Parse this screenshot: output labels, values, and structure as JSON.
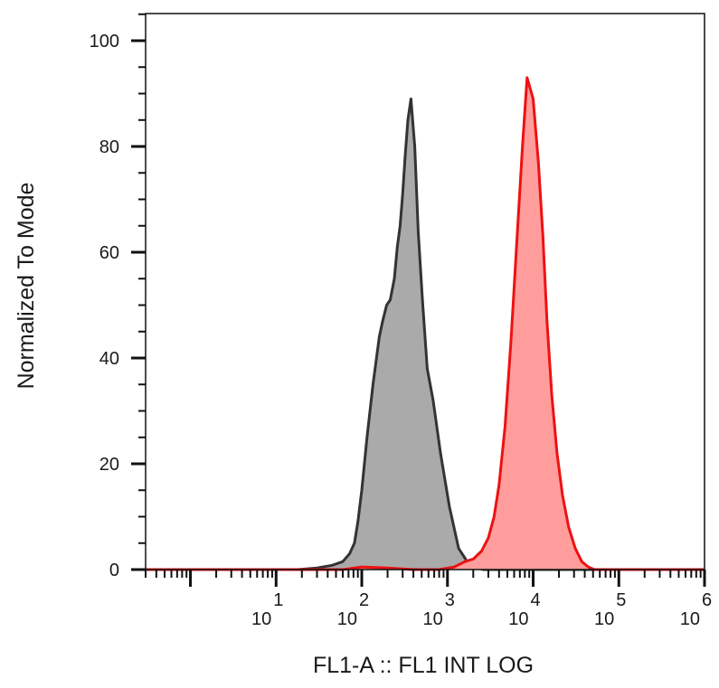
{
  "chart_data": {
    "type": "area",
    "xlabel": "FL1-A :: FL1 INT LOG",
    "ylabel": "Normalized To Mode",
    "x_scale": "log",
    "xlim": [
      0.3,
      1000000
    ],
    "ylim": [
      0,
      105
    ],
    "x_ticks": [
      {
        "base": "10",
        "exp": "1",
        "value": 10
      },
      {
        "base": "10",
        "exp": "2",
        "value": 100
      },
      {
        "base": "10",
        "exp": "3",
        "value": 1000
      },
      {
        "base": "10",
        "exp": "4",
        "value": 10000
      },
      {
        "base": "10",
        "exp": "5",
        "value": 100000
      },
      {
        "base": "10",
        "exp": "6",
        "value": 1000000
      }
    ],
    "y_ticks": [
      "0",
      "20",
      "40",
      "60",
      "80",
      "100"
    ],
    "series": [
      {
        "color_fill": "#aaaaaa",
        "color_line": "#333333",
        "x": [
          0.3,
          18,
          30,
          45,
          60,
          72,
          82,
          90,
          100,
          115,
          135,
          160,
          175,
          195,
          215,
          240,
          260,
          280,
          300,
          320,
          345,
          375,
          415,
          455,
          510,
          580,
          680,
          830,
          1050,
          1350,
          1700,
          2100,
          2600,
          1000000
        ],
        "y": [
          0,
          0,
          0.3,
          0.8,
          1.5,
          3,
          5,
          9,
          15,
          25,
          35,
          44,
          47,
          50,
          51,
          55,
          61,
          65,
          71,
          78,
          85,
          89,
          80,
          64,
          51,
          38,
          32,
          22,
          12,
          4,
          1.5,
          0.5,
          0,
          0
        ]
      },
      {
        "color_fill": "#ff9d9d",
        "color_line": "#ee1111",
        "x": [
          0.3,
          60,
          100,
          200,
          400,
          800,
          1200,
          1600,
          2000,
          2500,
          3000,
          3500,
          4000,
          4700,
          5500,
          6500,
          7500,
          8500,
          10000,
          11500,
          13000,
          14500,
          16500,
          19000,
          22000,
          26000,
          31000,
          37000,
          44000,
          52000,
          1000000
        ],
        "y": [
          0,
          0,
          0.5,
          0.3,
          0,
          0,
          0.5,
          1.5,
          2,
          3.5,
          6,
          10,
          16,
          27,
          43,
          63,
          80,
          93,
          89,
          77,
          63,
          47,
          33,
          22,
          14,
          8,
          4,
          1.5,
          0.5,
          0,
          0
        ]
      }
    ]
  }
}
